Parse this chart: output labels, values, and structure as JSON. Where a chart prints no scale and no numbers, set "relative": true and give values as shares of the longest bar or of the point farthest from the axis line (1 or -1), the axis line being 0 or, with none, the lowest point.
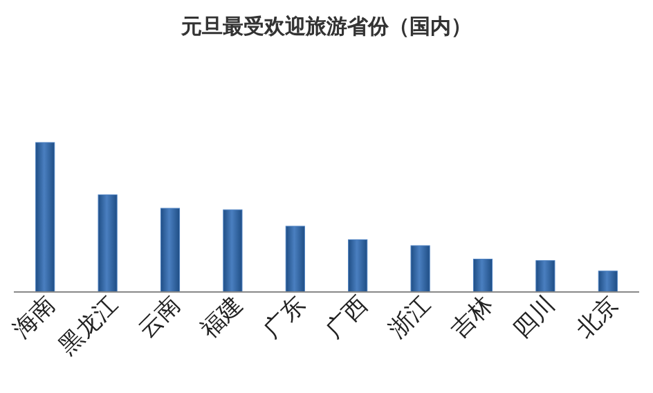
{
  "chart_data": {
    "type": "bar",
    "title": "元旦最受欢迎旅游省份（国内）",
    "categories": [
      "海南",
      "黑龙江",
      "云南",
      "福建",
      "广东",
      "广西",
      "浙江",
      "吉林",
      "四川",
      "北京"
    ],
    "values": [
      1,
      0.65,
      0.56,
      0.55,
      0.44,
      0.35,
      0.31,
      0.22,
      0.21,
      0.14
    ],
    "color": "#4a7fc0",
    "relative": true
  }
}
